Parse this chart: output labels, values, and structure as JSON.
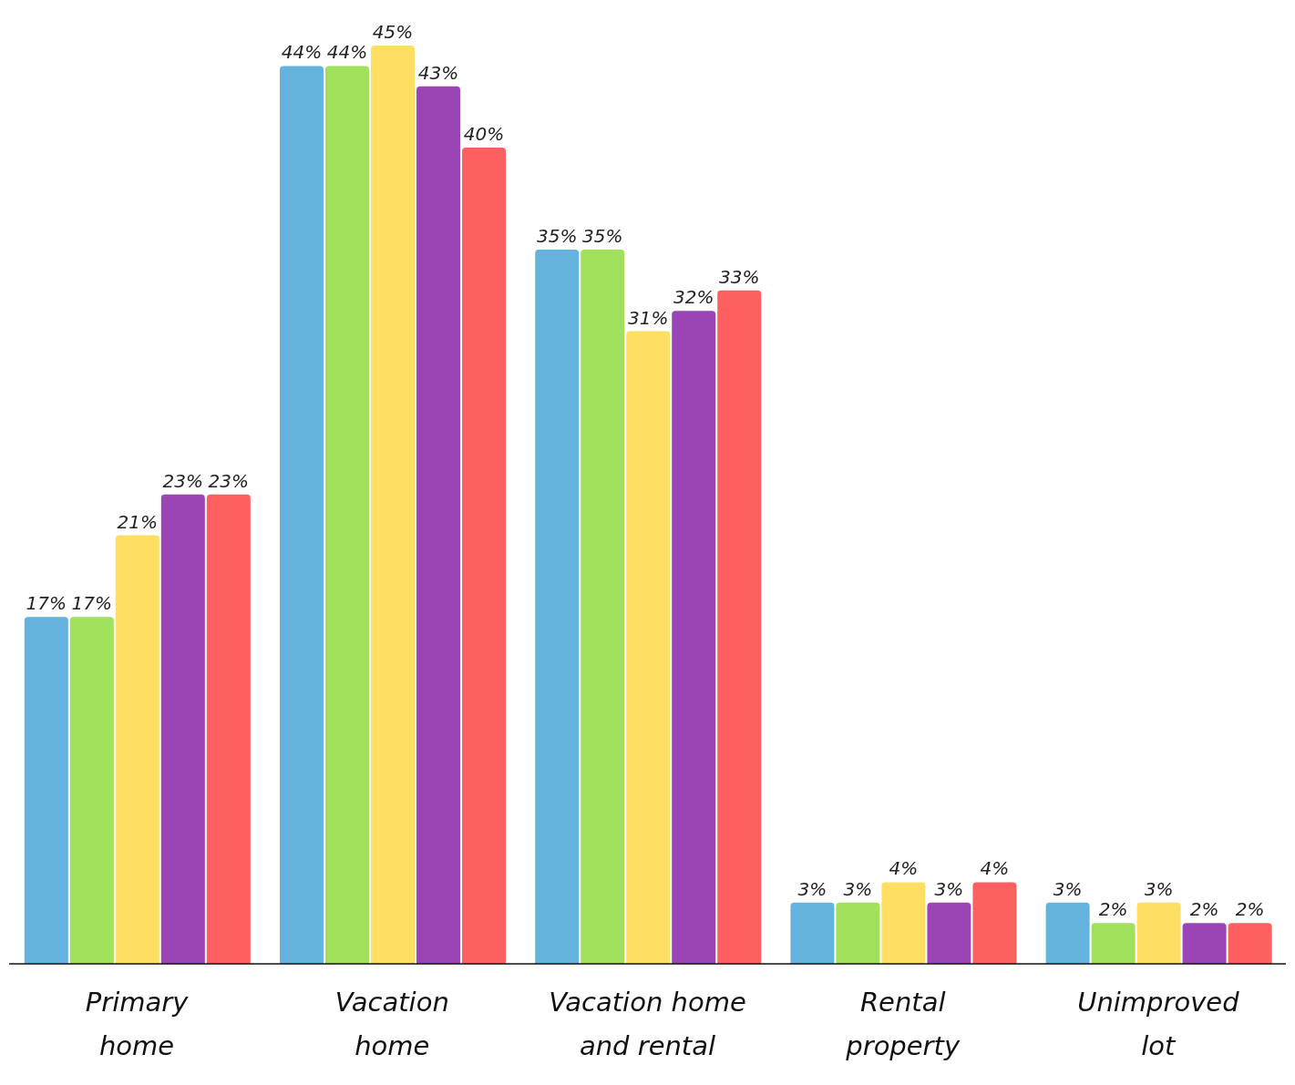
{
  "chart_data": {
    "type": "bar",
    "categories": [
      "Primary home",
      "Vacation home",
      "Vacation home and rental",
      "Rental property",
      "Unimproved lot"
    ],
    "series": [
      {
        "color": "#64b3de",
        "values": [
          17,
          44,
          35,
          3,
          3
        ],
        "value_labels": [
          "17%",
          "44%",
          "35%",
          "3%",
          "3%"
        ]
      },
      {
        "color": "#a0e05a",
        "values": [
          17,
          44,
          35,
          3,
          2
        ],
        "value_labels": [
          "17%",
          "44%",
          "35%",
          "3%",
          "2%"
        ]
      },
      {
        "color": "#fedf62",
        "values": [
          21,
          45,
          31,
          4,
          3
        ],
        "value_labels": [
          "21%",
          "45%",
          "31%",
          "4%",
          "3%"
        ]
      },
      {
        "color": "#9b45b5",
        "values": [
          23,
          43,
          32,
          3,
          2
        ],
        "value_labels": [
          "23%",
          "43%",
          "32%",
          "3%",
          "2%"
        ]
      },
      {
        "color": "#fe5f5f",
        "values": [
          23,
          40,
          33,
          4,
          2
        ],
        "value_labels": [
          "23%",
          "40%",
          "33%",
          "4%",
          "2%"
        ]
      }
    ],
    "grid": false,
    "legend": false
  }
}
